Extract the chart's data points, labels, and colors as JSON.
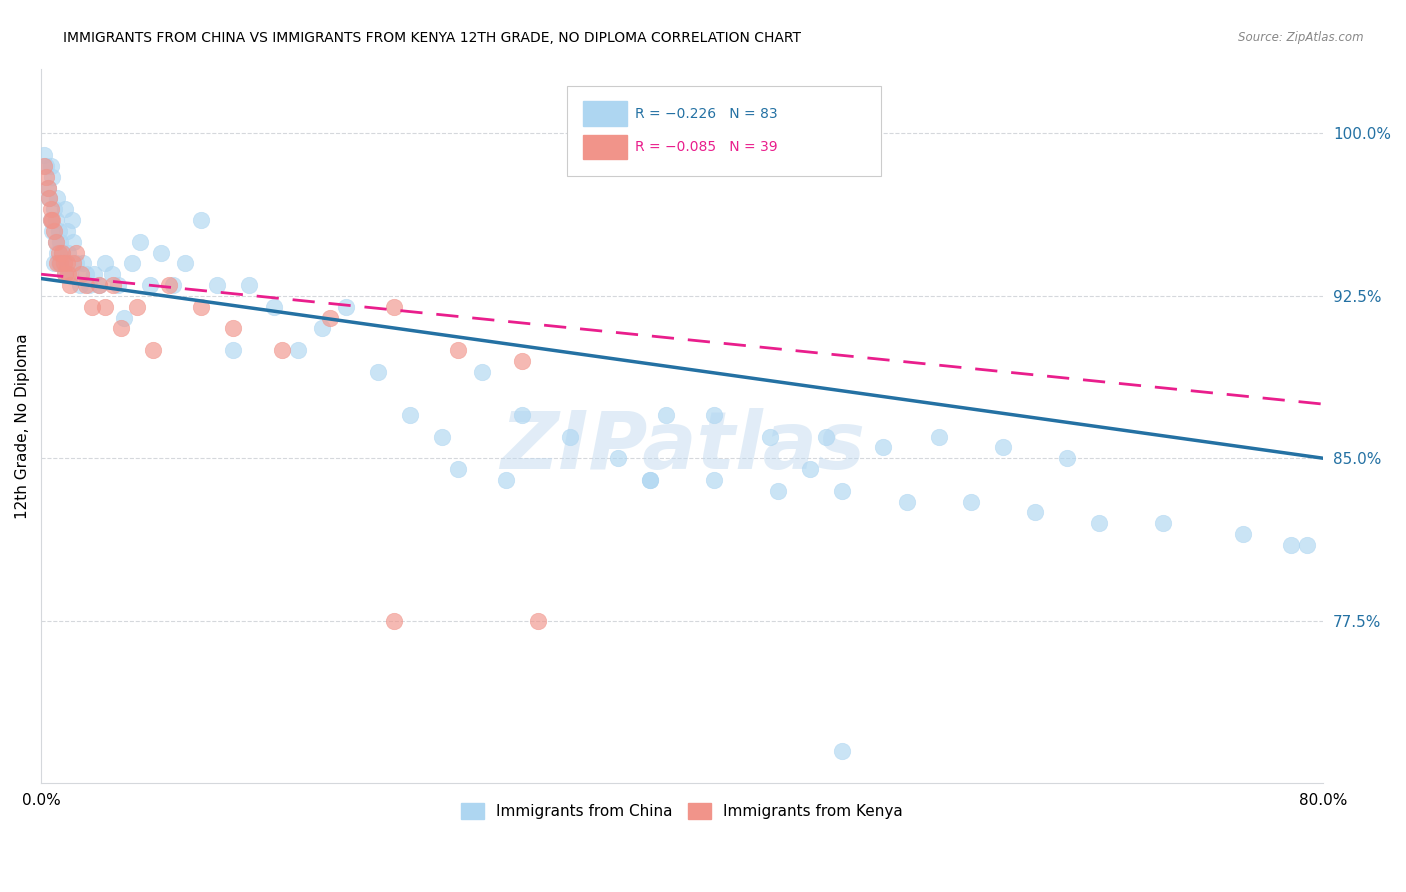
{
  "title": "IMMIGRANTS FROM CHINA VS IMMIGRANTS FROM KENYA 12TH GRADE, NO DIPLOMA CORRELATION CHART",
  "source": "Source: ZipAtlas.com",
  "ylabel": "12th Grade, No Diploma",
  "ytick_labels": [
    "100.0%",
    "92.5%",
    "85.0%",
    "77.5%"
  ],
  "ytick_values": [
    1.0,
    0.925,
    0.85,
    0.775
  ],
  "xlim": [
    0.0,
    0.8
  ],
  "ylim": [
    0.7,
    1.03
  ],
  "legend_china_r": "R = −0.226",
  "legend_china_n": "N = 83",
  "legend_kenya_r": "R = −0.085",
  "legend_kenya_n": "N = 39",
  "china_fill_color": "#AED6F1",
  "china_edge_color": "#AED6F1",
  "kenya_fill_color": "#F1948A",
  "kenya_edge_color": "#F1948A",
  "china_line_color": "#2471A3",
  "kenya_line_color": "#E91E8C",
  "tick_label_color_right": "#2471A3",
  "background_color": "#FFFFFF",
  "watermark": "ZIPatlas",
  "china_x": [
    0.002,
    0.003,
    0.004,
    0.005,
    0.006,
    0.006,
    0.007,
    0.007,
    0.008,
    0.008,
    0.009,
    0.009,
    0.01,
    0.01,
    0.011,
    0.011,
    0.012,
    0.013,
    0.014,
    0.015,
    0.015,
    0.016,
    0.017,
    0.018,
    0.019,
    0.02,
    0.022,
    0.024,
    0.026,
    0.028,
    0.03,
    0.033,
    0.036,
    0.04,
    0.044,
    0.048,
    0.052,
    0.057,
    0.062,
    0.068,
    0.075,
    0.082,
    0.09,
    0.1,
    0.11,
    0.12,
    0.13,
    0.145,
    0.16,
    0.175,
    0.19,
    0.21,
    0.23,
    0.25,
    0.275,
    0.3,
    0.33,
    0.36,
    0.39,
    0.42,
    0.455,
    0.49,
    0.525,
    0.56,
    0.6,
    0.64,
    0.48,
    0.38,
    0.29,
    0.26,
    0.38,
    0.42,
    0.46,
    0.5,
    0.54,
    0.58,
    0.62,
    0.66,
    0.7,
    0.75,
    0.78,
    0.79,
    0.5
  ],
  "china_y": [
    0.99,
    0.985,
    0.975,
    0.97,
    0.96,
    0.985,
    0.955,
    0.98,
    0.94,
    0.965,
    0.95,
    0.96,
    0.945,
    0.97,
    0.94,
    0.955,
    0.95,
    0.945,
    0.94,
    0.935,
    0.965,
    0.955,
    0.945,
    0.935,
    0.96,
    0.95,
    0.94,
    0.93,
    0.94,
    0.935,
    0.93,
    0.935,
    0.93,
    0.94,
    0.935,
    0.93,
    0.915,
    0.94,
    0.95,
    0.93,
    0.945,
    0.93,
    0.94,
    0.96,
    0.93,
    0.9,
    0.93,
    0.92,
    0.9,
    0.91,
    0.92,
    0.89,
    0.87,
    0.86,
    0.89,
    0.87,
    0.86,
    0.85,
    0.87,
    0.87,
    0.86,
    0.86,
    0.855,
    0.86,
    0.855,
    0.85,
    0.845,
    0.84,
    0.84,
    0.845,
    0.84,
    0.84,
    0.835,
    0.835,
    0.83,
    0.83,
    0.825,
    0.82,
    0.82,
    0.815,
    0.81,
    0.81,
    0.715
  ],
  "kenya_x": [
    0.002,
    0.003,
    0.004,
    0.005,
    0.006,
    0.006,
    0.007,
    0.008,
    0.009,
    0.01,
    0.011,
    0.012,
    0.013,
    0.014,
    0.015,
    0.016,
    0.017,
    0.018,
    0.02,
    0.022,
    0.025,
    0.028,
    0.032,
    0.036,
    0.04,
    0.045,
    0.05,
    0.06,
    0.07,
    0.08,
    0.1,
    0.12,
    0.15,
    0.18,
    0.22,
    0.26,
    0.3,
    0.22,
    0.31
  ],
  "kenya_y": [
    0.985,
    0.98,
    0.975,
    0.97,
    0.965,
    0.96,
    0.96,
    0.955,
    0.95,
    0.94,
    0.945,
    0.94,
    0.945,
    0.94,
    0.935,
    0.94,
    0.935,
    0.93,
    0.94,
    0.945,
    0.935,
    0.93,
    0.92,
    0.93,
    0.92,
    0.93,
    0.91,
    0.92,
    0.9,
    0.93,
    0.92,
    0.91,
    0.9,
    0.915,
    0.92,
    0.9,
    0.895,
    0.775,
    0.775
  ]
}
